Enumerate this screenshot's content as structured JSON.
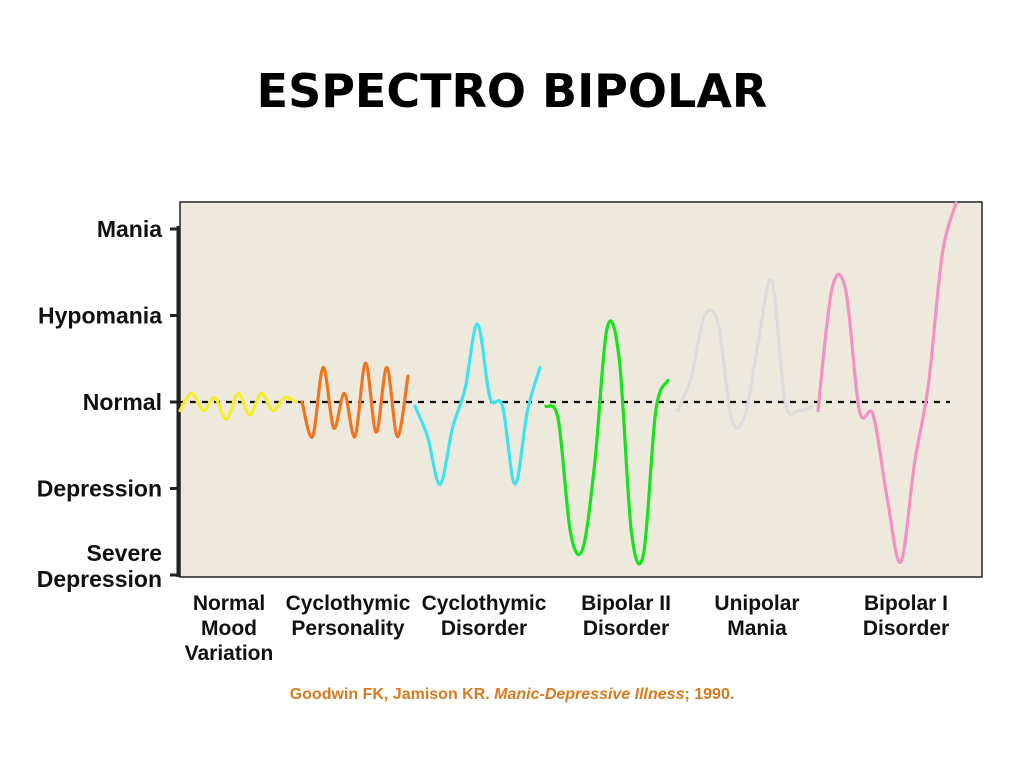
{
  "slide": {
    "title": "ESPECTRO BIPOLAR"
  },
  "chart_data": {
    "type": "line",
    "y_levels": [
      {
        "label": "Mania",
        "value": 4
      },
      {
        "label": "Hypomania",
        "value": 3
      },
      {
        "label": "Normal",
        "value": 2
      },
      {
        "label": "Depression",
        "value": 1
      },
      {
        "label": "Severe Depression",
        "value": 0
      }
    ],
    "baseline": {
      "value": 2,
      "style": "dashed"
    },
    "categories": [
      {
        "label": [
          "Normal",
          "Mood",
          "Variation"
        ]
      },
      {
        "label": [
          "Cyclothymic",
          "Personality"
        ]
      },
      {
        "label": [
          "Cyclothymic",
          "Disorder"
        ]
      },
      {
        "label": [
          "Bipolar II",
          "Disorder"
        ]
      },
      {
        "label": [
          "Unipolar",
          "Mania"
        ]
      },
      {
        "label": [
          "Bipolar I",
          "Disorder"
        ]
      }
    ],
    "series": [
      {
        "color": "#f2ee2a",
        "x": [
          0.0,
          0.1,
          0.2,
          0.3,
          0.4,
          0.5,
          0.6,
          0.7,
          0.8,
          0.9,
          1.0
        ],
        "y": [
          1.9,
          2.1,
          1.9,
          2.05,
          1.8,
          2.1,
          1.85,
          2.1,
          1.9,
          2.05,
          2.0
        ]
      },
      {
        "color": "#ef7620",
        "x": [
          0.0,
          0.1,
          0.2,
          0.3,
          0.4,
          0.5,
          0.6,
          0.7,
          0.8,
          0.9,
          1.0
        ],
        "y": [
          2.0,
          1.6,
          2.4,
          1.7,
          2.1,
          1.6,
          2.45,
          1.65,
          2.4,
          1.6,
          2.3
        ]
      },
      {
        "color": "#3fe3f0",
        "x": [
          0.0,
          0.1,
          0.2,
          0.3,
          0.4,
          0.5,
          0.6,
          0.7,
          0.8,
          0.9,
          1.0
        ],
        "y": [
          1.95,
          1.6,
          1.05,
          1.7,
          2.15,
          2.9,
          2.05,
          1.95,
          1.05,
          1.9,
          2.4
        ]
      },
      {
        "color": "#18e21c",
        "x": [
          0.0,
          0.1,
          0.2,
          0.3,
          0.4,
          0.5,
          0.6,
          0.7,
          0.8,
          0.9,
          1.0
        ],
        "y": [
          1.95,
          1.8,
          0.5,
          0.3,
          1.3,
          2.85,
          2.5,
          0.5,
          0.25,
          1.9,
          2.25
        ]
      },
      {
        "color": "#dcdcdc",
        "x": [
          0.0,
          0.1,
          0.2,
          0.3,
          0.4,
          0.5,
          0.6,
          0.7,
          0.8,
          0.9,
          1.0
        ],
        "y": [
          1.9,
          2.3,
          3.0,
          2.9,
          1.8,
          1.85,
          2.7,
          3.4,
          2.0,
          1.9,
          1.95
        ]
      },
      {
        "color": "#f490c3",
        "x": [
          0.0,
          0.1,
          0.2,
          0.3,
          0.4,
          0.5,
          0.6,
          0.7,
          0.8,
          0.9,
          1.0
        ],
        "y": [
          1.9,
          3.3,
          3.3,
          1.9,
          1.85,
          0.9,
          0.15,
          1.3,
          2.2,
          3.7,
          4.3
        ]
      }
    ]
  },
  "citation": {
    "authors": "Goodwin FK, Jamison KR. ",
    "work": "Manic-Depressive Illness",
    "year": "; 1990."
  }
}
